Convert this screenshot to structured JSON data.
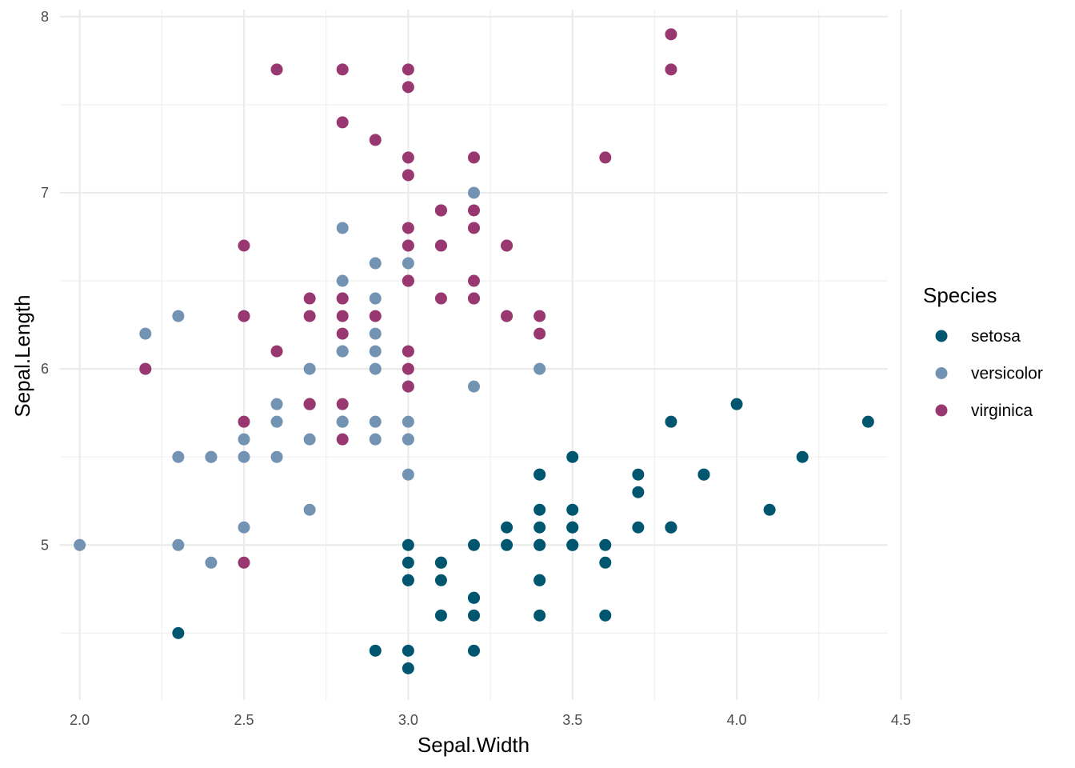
{
  "chart_data": {
    "type": "scatter",
    "xlabel": "Sepal.Width",
    "ylabel": "Sepal.Length",
    "xlim": [
      1.94,
      4.46
    ],
    "ylim": [
      4.12,
      8.04
    ],
    "x_ticks": [
      "2.0",
      "2.5",
      "3.0",
      "3.5",
      "4.0",
      "4.5"
    ],
    "y_ticks": [
      "5",
      "6",
      "7",
      "8"
    ],
    "grid": true,
    "legend": {
      "title": "Species",
      "position": "right",
      "entries": [
        "setosa",
        "versicolor",
        "virginica"
      ]
    },
    "series": [
      {
        "name": "setosa",
        "color": "#00566F",
        "points": [
          [
            3.5,
            5.1
          ],
          [
            3.0,
            4.9
          ],
          [
            3.2,
            4.7
          ],
          [
            3.1,
            4.6
          ],
          [
            3.6,
            5.0
          ],
          [
            3.9,
            5.4
          ],
          [
            3.4,
            4.6
          ],
          [
            3.4,
            5.0
          ],
          [
            2.9,
            4.4
          ],
          [
            3.1,
            4.9
          ],
          [
            3.7,
            5.4
          ],
          [
            3.4,
            4.8
          ],
          [
            3.0,
            4.8
          ],
          [
            3.0,
            4.3
          ],
          [
            4.0,
            5.8
          ],
          [
            4.4,
            5.7
          ],
          [
            3.9,
            5.4
          ],
          [
            3.5,
            5.1
          ],
          [
            3.8,
            5.7
          ],
          [
            3.8,
            5.1
          ],
          [
            3.4,
            5.4
          ],
          [
            3.7,
            5.1
          ],
          [
            3.6,
            4.6
          ],
          [
            3.3,
            5.1
          ],
          [
            3.4,
            4.8
          ],
          [
            3.0,
            5.0
          ],
          [
            3.4,
            5.0
          ],
          [
            3.5,
            5.2
          ],
          [
            3.4,
            5.2
          ],
          [
            3.2,
            4.7
          ],
          [
            3.1,
            4.8
          ],
          [
            3.4,
            5.4
          ],
          [
            4.1,
            5.2
          ],
          [
            4.2,
            5.5
          ],
          [
            3.1,
            4.9
          ],
          [
            3.2,
            5.0
          ],
          [
            3.5,
            5.5
          ],
          [
            3.6,
            4.9
          ],
          [
            3.0,
            4.4
          ],
          [
            3.4,
            5.1
          ],
          [
            3.5,
            5.0
          ],
          [
            2.3,
            4.5
          ],
          [
            3.2,
            4.4
          ],
          [
            3.5,
            5.0
          ],
          [
            3.8,
            5.1
          ],
          [
            3.0,
            4.8
          ],
          [
            3.8,
            5.1
          ],
          [
            3.2,
            4.6
          ],
          [
            3.7,
            5.3
          ],
          [
            3.3,
            5.0
          ]
        ]
      },
      {
        "name": "versicolor",
        "color": "#7393B3",
        "points": [
          [
            3.2,
            7.0
          ],
          [
            3.2,
            6.4
          ],
          [
            3.1,
            6.9
          ],
          [
            2.3,
            5.5
          ],
          [
            2.8,
            6.5
          ],
          [
            2.8,
            5.7
          ],
          [
            3.3,
            6.3
          ],
          [
            2.4,
            4.9
          ],
          [
            2.9,
            6.6
          ],
          [
            2.7,
            5.2
          ],
          [
            2.0,
            5.0
          ],
          [
            3.0,
            5.9
          ],
          [
            2.2,
            6.0
          ],
          [
            2.9,
            6.1
          ],
          [
            2.9,
            5.6
          ],
          [
            3.1,
            6.7
          ],
          [
            3.0,
            5.6
          ],
          [
            2.7,
            5.8
          ],
          [
            2.2,
            6.2
          ],
          [
            2.5,
            5.6
          ],
          [
            3.2,
            5.9
          ],
          [
            2.8,
            6.1
          ],
          [
            2.5,
            6.3
          ],
          [
            2.8,
            6.1
          ],
          [
            2.9,
            6.4
          ],
          [
            3.0,
            6.6
          ],
          [
            2.8,
            6.8
          ],
          [
            3.0,
            6.7
          ],
          [
            2.9,
            6.0
          ],
          [
            2.6,
            5.7
          ],
          [
            2.4,
            5.5
          ],
          [
            2.4,
            5.5
          ],
          [
            2.7,
            5.8
          ],
          [
            2.7,
            6.0
          ],
          [
            3.0,
            5.4
          ],
          [
            3.4,
            6.0
          ],
          [
            3.1,
            6.7
          ],
          [
            2.3,
            6.3
          ],
          [
            3.0,
            5.6
          ],
          [
            2.5,
            5.5
          ],
          [
            2.6,
            5.5
          ],
          [
            3.0,
            6.1
          ],
          [
            2.6,
            5.8
          ],
          [
            2.3,
            5.0
          ],
          [
            2.7,
            5.6
          ],
          [
            3.0,
            5.7
          ],
          [
            2.9,
            5.7
          ],
          [
            2.9,
            6.2
          ],
          [
            2.5,
            5.1
          ],
          [
            2.8,
            5.7
          ]
        ]
      },
      {
        "name": "virginica",
        "color": "#993870",
        "points": [
          [
            3.3,
            6.3
          ],
          [
            2.7,
            5.8
          ],
          [
            3.0,
            7.1
          ],
          [
            2.9,
            6.3
          ],
          [
            3.0,
            6.5
          ],
          [
            3.0,
            7.6
          ],
          [
            2.5,
            4.9
          ],
          [
            2.9,
            7.3
          ],
          [
            2.5,
            6.7
          ],
          [
            3.6,
            7.2
          ],
          [
            3.2,
            6.5
          ],
          [
            2.7,
            6.4
          ],
          [
            3.0,
            6.8
          ],
          [
            2.5,
            5.7
          ],
          [
            2.8,
            5.8
          ],
          [
            3.2,
            6.4
          ],
          [
            3.0,
            6.5
          ],
          [
            3.8,
            7.7
          ],
          [
            2.6,
            7.7
          ],
          [
            2.2,
            6.0
          ],
          [
            3.2,
            6.9
          ],
          [
            2.8,
            5.6
          ],
          [
            2.8,
            7.7
          ],
          [
            2.7,
            6.3
          ],
          [
            3.3,
            6.7
          ],
          [
            3.2,
            7.2
          ],
          [
            2.8,
            6.2
          ],
          [
            3.0,
            6.1
          ],
          [
            2.8,
            6.4
          ],
          [
            3.0,
            7.2
          ],
          [
            2.8,
            7.4
          ],
          [
            3.8,
            7.9
          ],
          [
            2.8,
            6.4
          ],
          [
            2.8,
            6.3
          ],
          [
            2.6,
            6.1
          ],
          [
            3.0,
            7.7
          ],
          [
            3.4,
            6.3
          ],
          [
            3.1,
            6.4
          ],
          [
            3.0,
            6.0
          ],
          [
            3.1,
            6.9
          ],
          [
            3.1,
            6.7
          ],
          [
            3.1,
            6.9
          ],
          [
            2.7,
            5.8
          ],
          [
            3.2,
            6.8
          ],
          [
            3.3,
            6.7
          ],
          [
            3.0,
            6.7
          ],
          [
            2.5,
            6.3
          ],
          [
            3.0,
            6.5
          ],
          [
            3.4,
            6.2
          ],
          [
            3.0,
            5.9
          ]
        ]
      }
    ]
  }
}
